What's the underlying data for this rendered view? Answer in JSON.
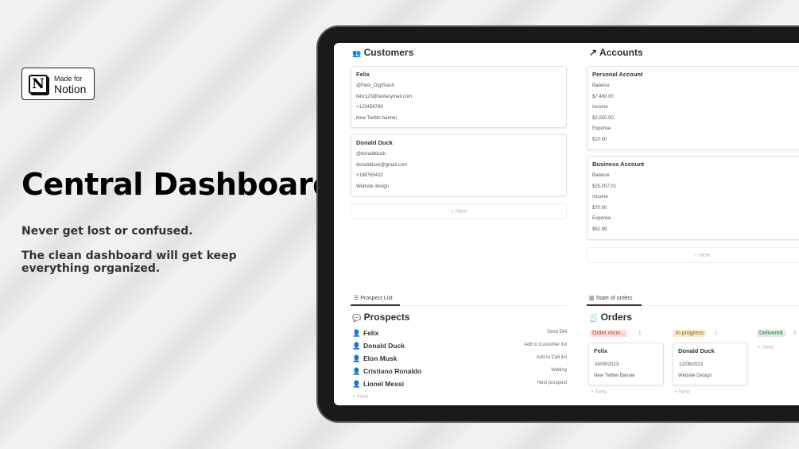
{
  "promo": {
    "badge_small": "Made for",
    "badge_big": "Notion",
    "badge_logo": "N",
    "title": "Central Dashboard",
    "line1": "Never get lost or confused.",
    "line2": "The clean dashboard will get keep everything organized."
  },
  "customers": {
    "title": "Customers",
    "icon": "people-icon",
    "new_label": "+ New",
    "cards": [
      {
        "name": "Felix",
        "handle": "@Felix_DigiStash",
        "email": "felix123@fantasymail.com",
        "phone": "+123456789",
        "project": "New Twitter banner"
      },
      {
        "name": "Donald Duck",
        "handle": "@donaldduck",
        "email": "donaldduck@gmail.com",
        "phone": "+198765432",
        "project": "Website design"
      }
    ]
  },
  "accounts": {
    "title": "Accounts",
    "icon": "arrow-up-right-icon",
    "new_label": "+ New",
    "cards": [
      {
        "name": "Personal Account",
        "balance_label": "Balance",
        "balance": "$7,490.00",
        "income_label": "Income",
        "income": "$2,500.00",
        "expense_label": "Expense",
        "expense": "$10.00"
      },
      {
        "name": "Business Account",
        "balance_label": "Balance",
        "balance": "$25,007.01",
        "income_label": "Income",
        "income": "$70.00",
        "expense_label": "Expense",
        "expense": "$62.99"
      }
    ]
  },
  "prospects": {
    "tab": "Prospect List",
    "title": "Prospects",
    "new_label": "+ New",
    "rows": [
      {
        "name": "Felix",
        "status": "Send DM"
      },
      {
        "name": "Donald Duck",
        "status": "Add to Customer list"
      },
      {
        "name": "Elon Musk",
        "status": "Add to Call list"
      },
      {
        "name": "Cristiano Ronaldo",
        "status": "Waiting"
      },
      {
        "name": "Lionel Messi",
        "status": "Next prospect"
      }
    ]
  },
  "orders": {
    "tab": "State of orders",
    "title": "Orders",
    "new_label": "+ New",
    "groups": [
      {
        "label": "Order recei...",
        "count": "1",
        "bg": "#fde0dc",
        "color": "#b04030"
      },
      {
        "label": "In progress",
        "count": "1",
        "bg": "#fbecc8",
        "color": "#8a5a10"
      },
      {
        "label": "Delivered",
        "count": "0",
        "bg": "#dcefe2",
        "color": "#2e6b45"
      }
    ],
    "cards": [
      {
        "name": "Felix",
        "date": "04/09/2023",
        "item": "New Twitter Banner"
      },
      {
        "name": "Donald Duck",
        "date": "12/08/2023",
        "item": "Website Design"
      }
    ]
  }
}
